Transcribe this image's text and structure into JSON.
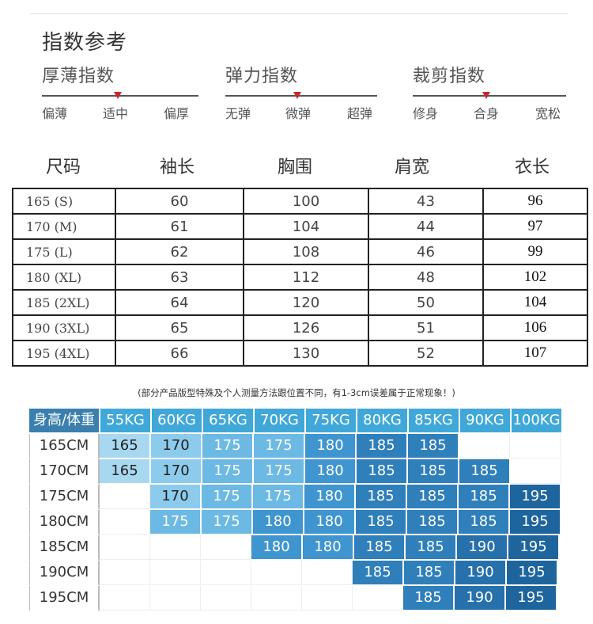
{
  "title": "指数参考",
  "indices": [
    {
      "name": "厚薄指数",
      "labels": [
        "偏薄",
        "适中",
        "偏厚"
      ],
      "selected": 1
    },
    {
      "name": "弹力指数",
      "labels": [
        "无弹",
        "微弹",
        "超弹"
      ],
      "selected": 1
    },
    {
      "name": "裁剪指数",
      "labels": [
        "修身",
        "合身",
        "宽松"
      ],
      "selected": 1
    }
  ],
  "size_table": {
    "headers": [
      "尺码",
      "袖长",
      "胸围",
      "肩宽",
      "衣长"
    ],
    "rows": [
      [
        "165 (S)",
        "60",
        "100",
        "43",
        "96"
      ],
      [
        "170 (M)",
        "61",
        "104",
        "44",
        "97"
      ],
      [
        "175 (L)",
        "62",
        "108",
        "46",
        "99"
      ],
      [
        "180 (XL)",
        "63",
        "112",
        "48",
        "102"
      ],
      [
        "185 (2XL)",
        "64",
        "120",
        "50",
        "104"
      ],
      [
        "190 (3XL)",
        "65",
        "126",
        "51",
        "106"
      ],
      [
        "195 (4XL)",
        "66",
        "130",
        "52",
        "107"
      ]
    ]
  },
  "note": "(部分产品版型特殊及个人测量方法跟位置不同，有1-3cm误差属于正常现象！)",
  "height_weight": {
    "corner": "身高/体重",
    "weights": [
      "55KG",
      "60KG",
      "65KG",
      "70KG",
      "75KG",
      "80KG",
      "85KG",
      "90KG",
      "100KG"
    ],
    "rows": [
      {
        "height": "165CM",
        "sizes": [
          "165",
          "170",
          "175",
          "175",
          "180",
          "185",
          "185",
          "",
          ""
        ]
      },
      {
        "height": "170CM",
        "sizes": [
          "165",
          "170",
          "175",
          "175",
          "180",
          "185",
          "185",
          "185",
          ""
        ]
      },
      {
        "height": "175CM",
        "sizes": [
          "",
          "170",
          "175",
          "175",
          "180",
          "185",
          "185",
          "185",
          "195"
        ]
      },
      {
        "height": "180CM",
        "sizes": [
          "",
          "175",
          "175",
          "180",
          "180",
          "185",
          "185",
          "185",
          "195"
        ]
      },
      {
        "height": "185CM",
        "sizes": [
          "",
          "",
          "",
          "180",
          "180",
          "185",
          "185",
          "190",
          "195"
        ]
      },
      {
        "height": "190CM",
        "sizes": [
          "",
          "",
          "",
          "",
          "",
          "185",
          "185",
          "190",
          "195"
        ]
      },
      {
        "height": "195CM",
        "sizes": [
          "",
          "",
          "",
          "",
          "",
          "",
          "185",
          "190",
          "195"
        ]
      }
    ],
    "colors": {
      "165": "#a8d8f0",
      "170": "#8ccbec",
      "175": "#6cb9e3",
      "180": "#3f95cf",
      "185": "#2f7fba",
      "190": "#2670ab",
      "195": "#1e659e"
    }
  }
}
